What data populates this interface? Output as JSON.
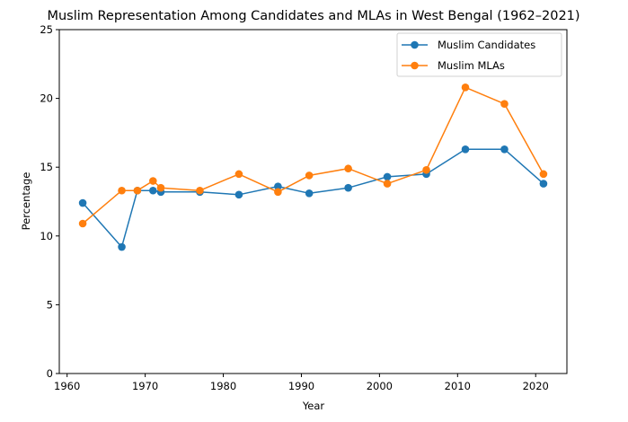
{
  "chart_data": {
    "type": "line",
    "title": "Muslim Representation Among Candidates and MLAs in West Bengal (1962–2021)",
    "xlabel": "Year",
    "ylabel": "Percentage",
    "xlim": [
      1959,
      2024
    ],
    "ylim": [
      0,
      25
    ],
    "xticks": [
      1960,
      1970,
      1980,
      1990,
      2000,
      2010,
      2020
    ],
    "yticks": [
      0,
      5,
      10,
      15,
      20,
      25
    ],
    "grid": false,
    "legend_position": "top-right",
    "series": [
      {
        "name": "Muslim Candidates",
        "color": "#1f77b4",
        "marker": "circle",
        "x": [
          1962,
          1967,
          1969,
          1971,
          1972,
          1977,
          1982,
          1987,
          1991,
          1996,
          2001,
          2006,
          2011,
          2016,
          2021
        ],
        "values": [
          12.4,
          9.2,
          13.3,
          13.3,
          13.2,
          13.2,
          13.0,
          13.6,
          13.1,
          13.5,
          14.3,
          14.5,
          16.3,
          16.3,
          13.8
        ]
      },
      {
        "name": "Muslim MLAs",
        "color": "#ff7f0e",
        "marker": "circle",
        "x": [
          1962,
          1967,
          1969,
          1971,
          1972,
          1977,
          1982,
          1987,
          1991,
          1996,
          2001,
          2006,
          2011,
          2016,
          2021
        ],
        "values": [
          10.9,
          13.3,
          13.3,
          14.0,
          13.5,
          13.3,
          14.5,
          13.2,
          14.4,
          14.9,
          13.8,
          14.8,
          20.8,
          19.6,
          14.5
        ]
      }
    ]
  }
}
